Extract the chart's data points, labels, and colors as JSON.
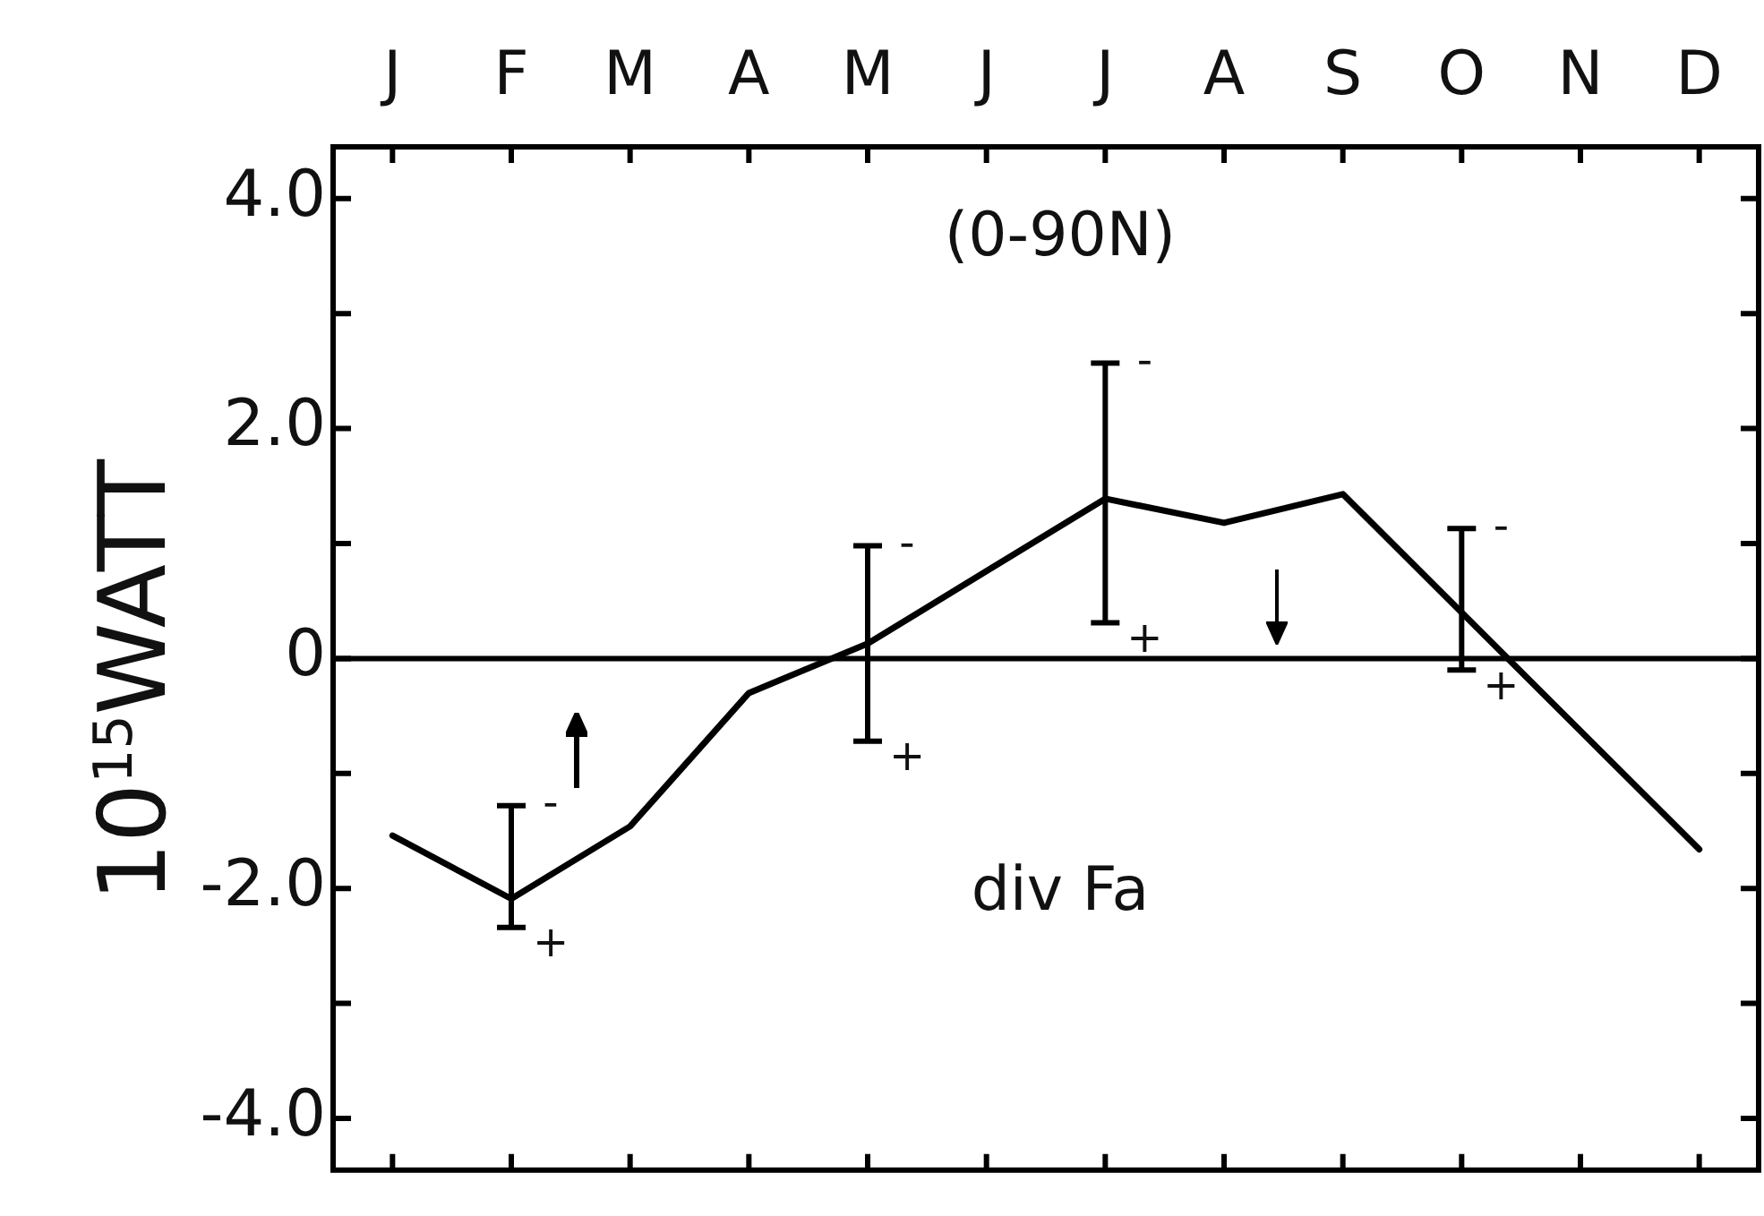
{
  "chart_data": {
    "type": "line",
    "ylabel": "10$^{15}$WATT",
    "annotations": [
      "(0-90N)",
      "div Fa",
      "-",
      "+",
      "-",
      "+",
      "-",
      "+",
      "-",
      "+"
    ],
    "categories": [
      "J",
      "F",
      "M",
      "A",
      "M",
      "J",
      "J",
      "A",
      "S",
      "O",
      "N",
      "D"
    ],
    "ylim": [
      -4.45,
      4.45
    ],
    "yticks": [
      {
        "value": -4,
        "label": "-4.0"
      },
      {
        "value": -3,
        "label": null
      },
      {
        "value": -2,
        "label": "-2.0"
      },
      {
        "value": -1,
        "label": null
      },
      0,
      {
        "value": 1,
        "label": null
      },
      {
        "value": 2,
        "label": "2.0"
      },
      {
        "value": 3,
        "label": null
      },
      {
        "value": 4,
        "label": "4.0"
      }
    ],
    "ref_lines": [
      {
        "axis": "y",
        "value": 0,
        "color": "#000000"
      }
    ],
    "grid": false,
    "legend": false,
    "marker": "none",
    "line_style": "solid",
    "series": [
      {
        "color": "#000000",
        "values": [
          -1.54,
          -2.09,
          -1.46,
          -0.3,
          0.13,
          0.76,
          1.39,
          1.18,
          1.43,
          0.4,
          -0.63,
          -1.66
        ],
        "errors": [
          null,
          [
            -2.34,
            -1.28
          ],
          null,
          null,
          [
            -0.72,
            0.98
          ],
          null,
          [
            0.31,
            2.57
          ],
          null,
          null,
          [
            -0.1,
            1.13
          ],
          null,
          null
        ]
      }
    ]
  }
}
